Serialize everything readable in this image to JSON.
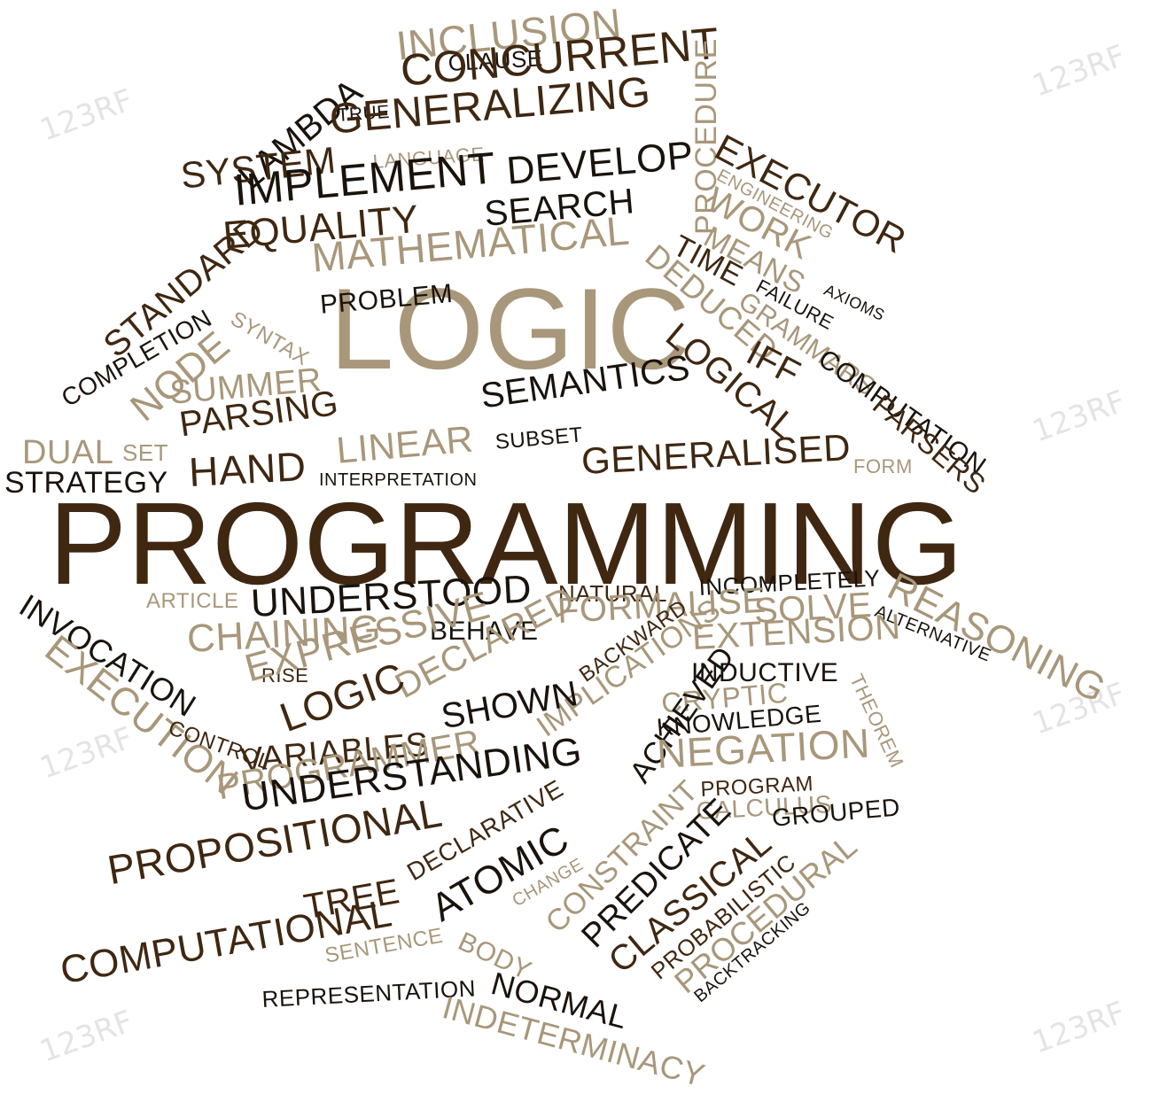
{
  "colors": {
    "dark": "#3f2711",
    "light": "#a8977a",
    "black": "#1a130c",
    "background": "#ffffff",
    "watermark": "#e4e4e4"
  },
  "watermark_text": "123RF",
  "words": [
    {
      "text": "PROGRAMMING",
      "style": "dark"
    },
    {
      "text": "LOGIC",
      "style": "light"
    },
    {
      "text": "INCLUSION",
      "style": "light"
    },
    {
      "text": "CLAUSE",
      "style": "black"
    },
    {
      "text": "CONCURRENT",
      "style": "dark"
    },
    {
      "text": "LAMBDA",
      "style": "black"
    },
    {
      "text": "TRUE",
      "style": "black"
    },
    {
      "text": "GENERALIZING",
      "style": "dark"
    },
    {
      "text": "LANGUAGE",
      "style": "light"
    },
    {
      "text": "SYSTEM",
      "style": "dark"
    },
    {
      "text": "IMPLEMENT",
      "style": "black"
    },
    {
      "text": "DEVELOP",
      "style": "black"
    },
    {
      "text": "SEARCH",
      "style": "black"
    },
    {
      "text": "PROCEDURE",
      "style": "light"
    },
    {
      "text": "EXECUTOR",
      "style": "dark"
    },
    {
      "text": "ENGINEERING",
      "style": "light"
    },
    {
      "text": "WORK",
      "style": "light"
    },
    {
      "text": "MEANS",
      "style": "light"
    },
    {
      "text": "TIME",
      "style": "dark"
    },
    {
      "text": "DEDUCED",
      "style": "light"
    },
    {
      "text": "EQUALITY",
      "style": "dark"
    },
    {
      "text": "STANDARD",
      "style": "dark"
    },
    {
      "text": "MATHEMATICAL",
      "style": "light"
    },
    {
      "text": "COMPLETION",
      "style": "black"
    },
    {
      "text": "SYNTAX",
      "style": "light"
    },
    {
      "text": "PROBLEM",
      "style": "black"
    },
    {
      "text": "NODE",
      "style": "light"
    },
    {
      "text": "FAILURE",
      "style": "black"
    },
    {
      "text": "AXIOMS",
      "style": "black"
    },
    {
      "text": "GRAMMARS",
      "style": "light"
    },
    {
      "text": "LOGICAL",
      "style": "dark"
    },
    {
      "text": "IFF",
      "style": "dark"
    },
    {
      "text": "COMPUTATION",
      "style": "black"
    },
    {
      "text": "PARSERS",
      "style": "dark"
    },
    {
      "text": "SUMMER",
      "style": "light"
    },
    {
      "text": "SEMANTICS",
      "style": "black"
    },
    {
      "text": "PARSING",
      "style": "dark"
    },
    {
      "text": "DUAL",
      "style": "light"
    },
    {
      "text": "SET",
      "style": "light"
    },
    {
      "text": "HAND",
      "style": "dark"
    },
    {
      "text": "LINEAR",
      "style": "light"
    },
    {
      "text": "SUBSET",
      "style": "black"
    },
    {
      "text": "GENERALISED",
      "style": "dark"
    },
    {
      "text": "FORM",
      "style": "light"
    },
    {
      "text": "STRATEGY",
      "style": "black"
    },
    {
      "text": "INTERPRETATION",
      "style": "black"
    },
    {
      "text": "ARTICLE",
      "style": "light"
    },
    {
      "text": "UNDERSTOOD",
      "style": "black"
    },
    {
      "text": "NATURAL",
      "style": "dark"
    },
    {
      "text": "INCOMPLETELY",
      "style": "black"
    },
    {
      "text": "REASONING",
      "style": "light"
    },
    {
      "text": "INVOCATION",
      "style": "black"
    },
    {
      "text": "FORMALISE",
      "style": "light"
    },
    {
      "text": "SOLVE",
      "style": "light"
    },
    {
      "text": "ALTERNATIVE",
      "style": "black"
    },
    {
      "text": "CHAINING",
      "style": "light"
    },
    {
      "text": "BEHAVE",
      "style": "black"
    },
    {
      "text": "EXTENSION",
      "style": "light"
    },
    {
      "text": "EXECUTION",
      "style": "light"
    },
    {
      "text": "RISE",
      "style": "dark"
    },
    {
      "text": "EXPRESSIVE",
      "style": "light"
    },
    {
      "text": "DECLARED",
      "style": "light"
    },
    {
      "text": "BACKWARD",
      "style": "dark"
    },
    {
      "text": "INDUCTIVE",
      "style": "black"
    },
    {
      "text": "THEOREM",
      "style": "light"
    },
    {
      "text": "LOGIC",
      "style": "dark"
    },
    {
      "text": "IMPLICATIONS",
      "style": "light"
    },
    {
      "text": "CRYPTIC",
      "style": "light"
    },
    {
      "text": "CONTROL",
      "style": "dark"
    },
    {
      "text": "SHOWN",
      "style": "black"
    },
    {
      "text": "KNOWLEDGE",
      "style": "black"
    },
    {
      "text": "VARIABLES",
      "style": "dark"
    },
    {
      "text": "ACHIEVED",
      "style": "black"
    },
    {
      "text": "NEGATION",
      "style": "light"
    },
    {
      "text": "PROGRAMMER",
      "style": "light"
    },
    {
      "text": "PROGRAM",
      "style": "dark"
    },
    {
      "text": "UNDERSTANDING",
      "style": "black"
    },
    {
      "text": "CALCULUS",
      "style": "light"
    },
    {
      "text": "DECLARATIVE",
      "style": "dark"
    },
    {
      "text": "GROUPED",
      "style": "black"
    },
    {
      "text": "CONSTRAINT",
      "style": "light"
    },
    {
      "text": "PROPOSITIONAL",
      "style": "dark"
    },
    {
      "text": "PREDICATE",
      "style": "black"
    },
    {
      "text": "TREE",
      "style": "dark"
    },
    {
      "text": "ATOMIC",
      "style": "black"
    },
    {
      "text": "CLASSICAL",
      "style": "dark"
    },
    {
      "text": "PROBABILISTIC",
      "style": "dark"
    },
    {
      "text": "CHANGE",
      "style": "light"
    },
    {
      "text": "PROCEDURAL",
      "style": "light"
    },
    {
      "text": "BACKTRACKING",
      "style": "black"
    },
    {
      "text": "COMPUTATIONAL",
      "style": "dark"
    },
    {
      "text": "BODY",
      "style": "light"
    },
    {
      "text": "SENTENCE",
      "style": "light"
    },
    {
      "text": "REPRESENTATION",
      "style": "black"
    },
    {
      "text": "NORMAL",
      "style": "black"
    },
    {
      "text": "INDETERMINACY",
      "style": "light"
    }
  ]
}
